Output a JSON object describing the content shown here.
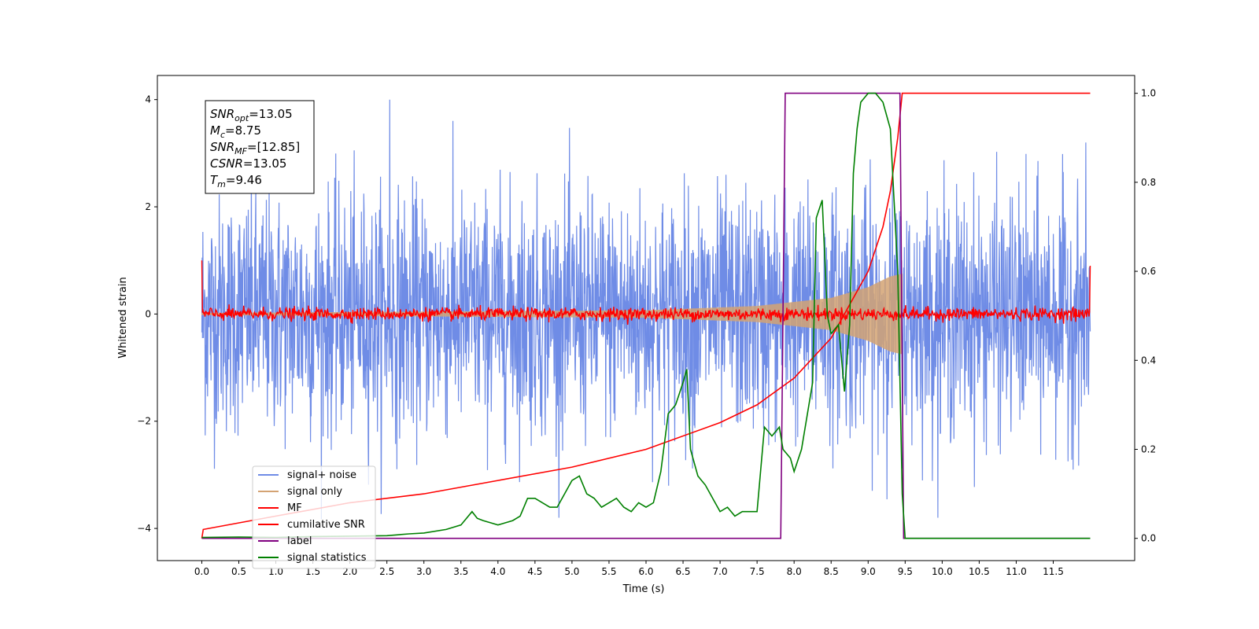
{
  "chart_data": {
    "type": "line",
    "xlabel": "Time (s)",
    "ylabel": "Whitened strain",
    "xlim": [
      -0.6,
      12.6
    ],
    "ylim_left": [
      -4.6,
      4.45
    ],
    "ylim_right": [
      -0.05,
      1.04
    ],
    "x_ticks": [
      0.0,
      0.5,
      1.0,
      1.5,
      2.0,
      2.5,
      3.0,
      3.5,
      4.0,
      4.5,
      5.0,
      5.5,
      6.0,
      6.5,
      7.0,
      7.5,
      8.0,
      8.5,
      9.0,
      9.5,
      10.0,
      10.5,
      11.0,
      11.5
    ],
    "x_tick_labels": [
      "0.0",
      "0.5",
      "1.0",
      "1.5",
      "2.0",
      "2.5",
      "3.0",
      "3.5",
      "4.0",
      "4.5",
      "5.0",
      "5.5",
      "6.0",
      "6.5",
      "7.0",
      "7.5",
      "8.0",
      "8.5",
      "9.0",
      "9.5",
      "10.0",
      "10.5",
      "11.0",
      "11.5"
    ],
    "y_left_ticks": [
      -4,
      -2,
      0,
      2,
      4
    ],
    "y_left_tick_labels": [
      "−4",
      "−2",
      "0",
      "2",
      "4"
    ],
    "y_right_ticks": [
      0.0,
      0.2,
      0.4,
      0.6,
      0.8,
      1.0
    ],
    "y_right_tick_labels": [
      "0.0",
      "0.2",
      "0.4",
      "0.6",
      "0.8",
      "1.0"
    ],
    "legend_position": "lower-left",
    "series": [
      {
        "name": "signal+ noise",
        "color": "#6f8ce6",
        "axis": "left",
        "kind": "noise",
        "x_range": [
          0,
          12
        ],
        "amplitude_sd": 1.1,
        "peak_max": 4.0,
        "peak_min": -4.0
      },
      {
        "name": "signal only",
        "color": "#d4a373",
        "axis": "left",
        "kind": "chirp",
        "x_range": [
          0,
          9.46
        ],
        "envelope": {
          "x": [
            0,
            6.0,
            7.5,
            8.5,
            9.0,
            9.3,
            9.46
          ],
          "y": [
            0.02,
            0.07,
            0.15,
            0.3,
            0.5,
            0.7,
            0.75
          ]
        }
      },
      {
        "name": "MF",
        "color": "#ff0000",
        "axis": "left",
        "kind": "mf",
        "x_range": [
          0,
          12
        ],
        "amplitude_sd": 0.06,
        "edge_values": [
          1.0,
          0.9
        ]
      },
      {
        "name": "cumilative SNR",
        "color": "#ff0000",
        "axis": "right",
        "x": [
          0.0,
          0.02,
          1.0,
          2.0,
          3.0,
          4.0,
          5.0,
          6.0,
          7.0,
          7.5,
          8.0,
          8.5,
          9.0,
          9.2,
          9.3,
          9.4,
          9.46,
          12.0
        ],
        "y": [
          0.0,
          0.02,
          0.05,
          0.08,
          0.1,
          0.13,
          0.16,
          0.2,
          0.26,
          0.3,
          0.36,
          0.45,
          0.6,
          0.7,
          0.78,
          0.9,
          1.0,
          1.0
        ]
      },
      {
        "name": "label",
        "color": "#800080",
        "axis": "right",
        "x": [
          0.0,
          7.82,
          7.88,
          9.43,
          9.48,
          12.0
        ],
        "y": [
          0.0,
          0.0,
          1.0,
          1.0,
          0.0,
          0.0
        ]
      },
      {
        "name": "signal statistics",
        "color": "#008000",
        "axis": "right",
        "x": [
          0.0,
          0.5,
          1.0,
          1.5,
          2.0,
          2.5,
          2.8,
          3.0,
          3.3,
          3.5,
          3.65,
          3.72,
          3.8,
          3.9,
          4.0,
          4.2,
          4.3,
          4.4,
          4.5,
          4.6,
          4.7,
          4.8,
          4.9,
          5.0,
          5.1,
          5.2,
          5.3,
          5.4,
          5.5,
          5.6,
          5.7,
          5.8,
          5.9,
          6.0,
          6.1,
          6.2,
          6.3,
          6.4,
          6.5,
          6.55,
          6.6,
          6.7,
          6.8,
          6.9,
          7.0,
          7.1,
          7.2,
          7.3,
          7.4,
          7.5,
          7.6,
          7.7,
          7.8,
          7.85,
          7.95,
          8.0,
          8.1,
          8.15,
          8.25,
          8.3,
          8.38,
          8.45,
          8.5,
          8.6,
          8.68,
          8.75,
          8.8,
          8.85,
          8.9,
          9.0,
          9.1,
          9.2,
          9.3,
          9.4,
          9.46,
          9.5,
          9.6,
          10.0,
          11.0,
          12.0
        ],
        "y": [
          0.002,
          0.003,
          0.002,
          0.004,
          0.005,
          0.006,
          0.01,
          0.012,
          0.02,
          0.03,
          0.06,
          0.045,
          0.04,
          0.035,
          0.03,
          0.04,
          0.05,
          0.09,
          0.09,
          0.08,
          0.07,
          0.07,
          0.1,
          0.13,
          0.14,
          0.1,
          0.09,
          0.07,
          0.08,
          0.09,
          0.07,
          0.06,
          0.08,
          0.07,
          0.08,
          0.15,
          0.28,
          0.3,
          0.35,
          0.38,
          0.2,
          0.14,
          0.12,
          0.09,
          0.06,
          0.07,
          0.05,
          0.06,
          0.06,
          0.06,
          0.25,
          0.23,
          0.25,
          0.2,
          0.18,
          0.15,
          0.2,
          0.25,
          0.35,
          0.72,
          0.76,
          0.5,
          0.46,
          0.48,
          0.33,
          0.48,
          0.82,
          0.92,
          0.98,
          1.0,
          1.0,
          0.98,
          0.92,
          0.6,
          0.1,
          0.0,
          0.0,
          0.0,
          0.0,
          0.0
        ]
      }
    ],
    "annotation": [
      {
        "name": "SNR",
        "sub": "opt",
        "value": "=13.05"
      },
      {
        "name": "M",
        "sub": "c",
        "value": "=8.75"
      },
      {
        "name": "SNR",
        "sub": "MF",
        "value": "=[12.85]"
      },
      {
        "name": "CSNR",
        "sub": "",
        "value": "=13.05"
      },
      {
        "name": "T",
        "sub": "m",
        "value": "=9.46"
      }
    ]
  }
}
